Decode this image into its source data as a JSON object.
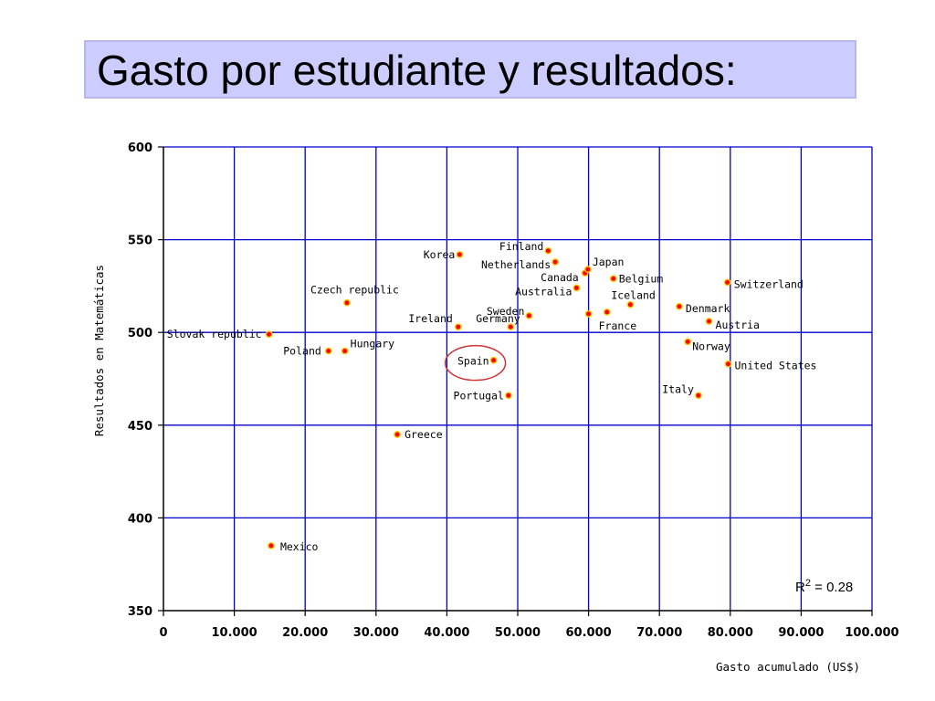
{
  "slide": {
    "title": "Gasto por estudiante y resultados:"
  },
  "chart_data": {
    "type": "scatter",
    "title": "",
    "xlabel": "Gasto acumulado (US$)",
    "ylabel": "Resultados en Matemáticas",
    "xlim": [
      0,
      100000
    ],
    "ylim": [
      350,
      600
    ],
    "x_ticks": [
      0,
      10000,
      20000,
      30000,
      40000,
      50000,
      60000,
      70000,
      80000,
      90000,
      100000
    ],
    "x_tick_labels": [
      "0",
      "10.000",
      "20.000",
      "30.000",
      "40.000",
      "50.000",
      "60.000",
      "70.000",
      "80.000",
      "90.000",
      "100.000"
    ],
    "y_ticks": [
      350,
      400,
      450,
      500,
      550,
      600
    ],
    "y_tick_labels": [
      "350",
      "400",
      "450",
      "500",
      "550",
      "600"
    ],
    "grid": true,
    "marker_color": "#ff0000",
    "marker_edge_color": "#ffcc00",
    "grid_color": "#0000cc",
    "highlight_color": "#cc3333",
    "annotation": {
      "text": "R",
      "superscript": "2",
      "suffix": " = 0.28"
    },
    "highlighted": "Spain",
    "points": [
      {
        "label": "Mexico",
        "x": 15200,
        "y": 385
      },
      {
        "label": "Slovak republic",
        "x": 14900,
        "y": 499
      },
      {
        "label": "Poland",
        "x": 23300,
        "y": 490
      },
      {
        "label": "Hungary",
        "x": 25600,
        "y": 490
      },
      {
        "label": "Czech republic",
        "x": 25900,
        "y": 516
      },
      {
        "label": "Greece",
        "x": 33000,
        "y": 445
      },
      {
        "label": "Korea",
        "x": 41800,
        "y": 542
      },
      {
        "label": "Ireland",
        "x": 41600,
        "y": 503
      },
      {
        "label": "Spain",
        "x": 46600,
        "y": 485
      },
      {
        "label": "Portugal",
        "x": 48700,
        "y": 466
      },
      {
        "label": "Germany",
        "x": 49000,
        "y": 503
      },
      {
        "label": "Finland",
        "x": 54300,
        "y": 544
      },
      {
        "label": "Netherlands",
        "x": 55300,
        "y": 538
      },
      {
        "label": "Sweden",
        "x": 51600,
        "y": 509
      },
      {
        "label": "Australia",
        "x": 58300,
        "y": 524
      },
      {
        "label": "Canada",
        "x": 59500,
        "y": 532
      },
      {
        "label": "Japan",
        "x": 59900,
        "y": 534
      },
      {
        "label": "France",
        "x": 60000,
        "y": 510
      },
      {
        "label": "Belgium",
        "x": 63500,
        "y": 529
      },
      {
        "label": "Iceland",
        "x": 65900,
        "y": 515
      },
      {
        "label": "Denmark",
        "x": 72800,
        "y": 514
      },
      {
        "label": "Norway",
        "x": 74000,
        "y": 495
      },
      {
        "label": "Austria",
        "x": 77000,
        "y": 506
      },
      {
        "label": "Italy",
        "x": 75500,
        "y": 466
      },
      {
        "label": "Switzerland",
        "x": 79600,
        "y": 527
      },
      {
        "label": "United States",
        "x": 79700,
        "y": 483
      },
      {
        "label": "",
        "x": 62600,
        "y": 511
      }
    ]
  }
}
